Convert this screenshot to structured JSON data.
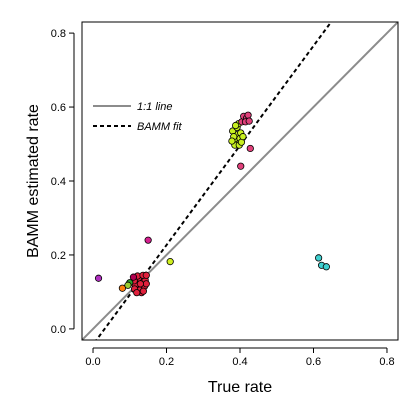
{
  "chart_data": {
    "type": "scatter",
    "title": "",
    "xlabel": "True rate",
    "ylabel": "BAMM estimated rate",
    "xlim": [
      -0.03,
      0.83
    ],
    "ylim": [
      -0.03,
      0.83
    ],
    "x_ticks": [
      "0.0",
      "0.2",
      "0.4",
      "0.6",
      "0.8"
    ],
    "y_ticks": [
      "0.0",
      "0.2",
      "0.4",
      "0.6",
      "0.8"
    ],
    "x_tick_values": [
      0.0,
      0.2,
      0.4,
      0.6,
      0.8
    ],
    "y_tick_values": [
      0.0,
      0.2,
      0.4,
      0.6,
      0.8
    ],
    "grid": false,
    "legend_position": "top-left",
    "lines": [
      {
        "name": "1:1 line",
        "style": "solid",
        "color": "#8c8c8c",
        "slope": 1.0,
        "intercept": 0.0
      },
      {
        "name": "BAMM fit",
        "style": "dashed",
        "color": "#000000",
        "slope": 1.3465,
        "intercept": -0.0425
      }
    ],
    "points": [
      {
        "x": 0.12,
        "y": 0.11,
        "color": "#e0203c"
      },
      {
        "x": 0.125,
        "y": 0.12,
        "color": "#e0203c"
      },
      {
        "x": 0.13,
        "y": 0.115,
        "color": "#e0203c"
      },
      {
        "x": 0.118,
        "y": 0.128,
        "color": "#e0203c"
      },
      {
        "x": 0.135,
        "y": 0.108,
        "color": "#e0203c"
      },
      {
        "x": 0.128,
        "y": 0.132,
        "color": "#e0203c"
      },
      {
        "x": 0.138,
        "y": 0.125,
        "color": "#e0203c"
      },
      {
        "x": 0.122,
        "y": 0.1,
        "color": "#e0203c"
      },
      {
        "x": 0.132,
        "y": 0.098,
        "color": "#e0203c"
      },
      {
        "x": 0.14,
        "y": 0.115,
        "color": "#e0203c"
      },
      {
        "x": 0.115,
        "y": 0.118,
        "color": "#e0203c"
      },
      {
        "x": 0.127,
        "y": 0.105,
        "color": "#e0203c"
      },
      {
        "x": 0.133,
        "y": 0.138,
        "color": "#e0203c"
      },
      {
        "x": 0.142,
        "y": 0.132,
        "color": "#e0203c"
      },
      {
        "x": 0.113,
        "y": 0.108,
        "color": "#e0203c"
      },
      {
        "x": 0.124,
        "y": 0.138,
        "color": "#e0203c"
      },
      {
        "x": 0.137,
        "y": 0.102,
        "color": "#e0203c"
      },
      {
        "x": 0.119,
        "y": 0.098,
        "color": "#e0203c"
      },
      {
        "x": 0.145,
        "y": 0.122,
        "color": "#e0203c"
      },
      {
        "x": 0.112,
        "y": 0.13,
        "color": "#e0203c"
      },
      {
        "x": 0.129,
        "y": 0.122,
        "color": "#e0203c"
      },
      {
        "x": 0.121,
        "y": 0.143,
        "color": "#e0203c"
      },
      {
        "x": 0.136,
        "y": 0.145,
        "color": "#e0203c"
      },
      {
        "x": 0.145,
        "y": 0.145,
        "color": "#e0203c"
      },
      {
        "x": 0.1,
        "y": 0.125,
        "color": "#2ca02c"
      },
      {
        "x": 0.08,
        "y": 0.11,
        "color": "#ff7f0e"
      },
      {
        "x": 0.095,
        "y": 0.118,
        "color": "#9acd32"
      },
      {
        "x": 0.11,
        "y": 0.14,
        "color": "#b20050"
      },
      {
        "x": 0.15,
        "y": 0.24,
        "color": "#d62090"
      },
      {
        "x": 0.015,
        "y": 0.137,
        "color": "#b030c0"
      },
      {
        "x": 0.21,
        "y": 0.182,
        "color": "#d0f020"
      },
      {
        "x": 0.385,
        "y": 0.51,
        "color": "#c8f020"
      },
      {
        "x": 0.39,
        "y": 0.525,
        "color": "#c8f020"
      },
      {
        "x": 0.395,
        "y": 0.5,
        "color": "#c8f020"
      },
      {
        "x": 0.38,
        "y": 0.535,
        "color": "#c8f020"
      },
      {
        "x": 0.4,
        "y": 0.515,
        "color": "#c8f020"
      },
      {
        "x": 0.392,
        "y": 0.545,
        "color": "#c8f020"
      },
      {
        "x": 0.402,
        "y": 0.53,
        "color": "#c8f020"
      },
      {
        "x": 0.386,
        "y": 0.497,
        "color": "#c8f020"
      },
      {
        "x": 0.398,
        "y": 0.497,
        "color": "#c8f020"
      },
      {
        "x": 0.383,
        "y": 0.52,
        "color": "#c8f020"
      },
      {
        "x": 0.396,
        "y": 0.555,
        "color": "#c8f020"
      },
      {
        "x": 0.404,
        "y": 0.505,
        "color": "#c8f020"
      },
      {
        "x": 0.388,
        "y": 0.55,
        "color": "#c8f020"
      },
      {
        "x": 0.378,
        "y": 0.508,
        "color": "#c8f020"
      },
      {
        "x": 0.408,
        "y": 0.52,
        "color": "#c8f020"
      },
      {
        "x": 0.405,
        "y": 0.56,
        "color": "#e0407a"
      },
      {
        "x": 0.41,
        "y": 0.575,
        "color": "#e0407a"
      },
      {
        "x": 0.418,
        "y": 0.57,
        "color": "#e0407a"
      },
      {
        "x": 0.415,
        "y": 0.56,
        "color": "#e0407a"
      },
      {
        "x": 0.422,
        "y": 0.578,
        "color": "#e0407a"
      },
      {
        "x": 0.425,
        "y": 0.562,
        "color": "#e0407a"
      },
      {
        "x": 0.428,
        "y": 0.488,
        "color": "#e0407a"
      },
      {
        "x": 0.402,
        "y": 0.44,
        "color": "#e0407a"
      },
      {
        "x": 0.614,
        "y": 0.192,
        "color": "#40d0d0"
      },
      {
        "x": 0.622,
        "y": 0.172,
        "color": "#40d0d0"
      },
      {
        "x": 0.635,
        "y": 0.168,
        "color": "#40d0d0"
      }
    ]
  }
}
